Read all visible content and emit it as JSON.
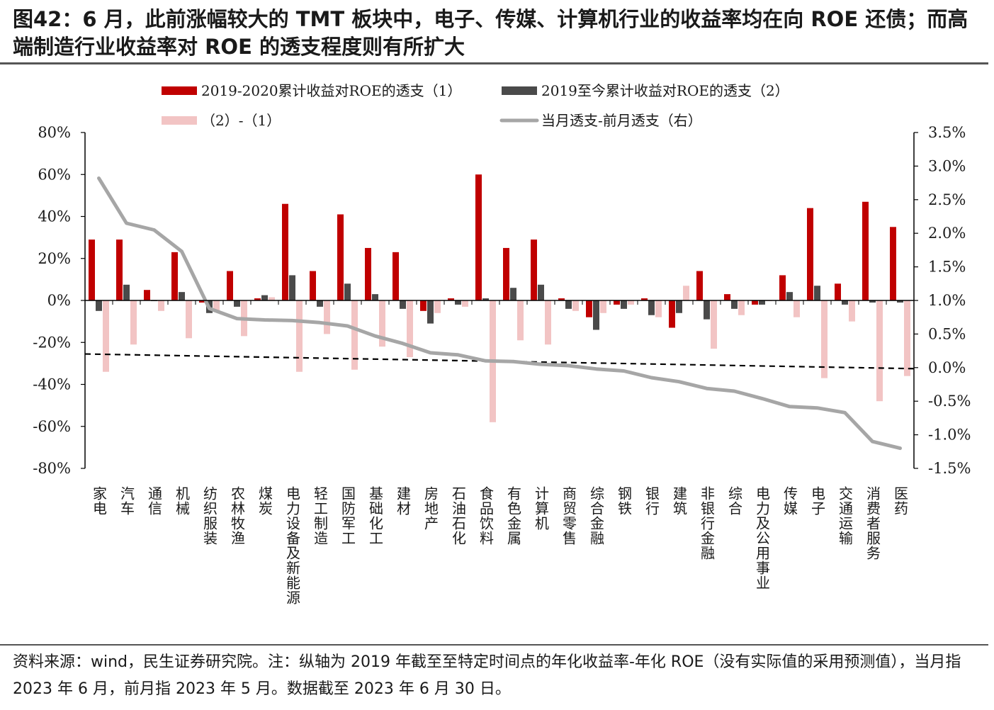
{
  "figure": {
    "title": "图42：6 月，此前涨幅较大的 TMT 板块中，电子、传媒、计算机行业的收益率均在向 ROE 还债；而高端制造行业收益率对 ROE 的透支程度则有所扩大",
    "note": "资料来源：wind，民生证券研究院。注：纵轴为 2019 年截至至特定时间点的年化收益率-年化 ROE（没有实际值的采用预测值），当月指 2023 年 6 月，前月指 2023 年 5 月。数据截至 2023 年 6 月 30 日。"
  },
  "chart_data": {
    "type": "bar",
    "categories": [
      "家电",
      "汽车",
      "通信",
      "机械",
      "纺织服装",
      "农林牧渔",
      "煤炭",
      "电力设备及新能源",
      "轻工制造",
      "国防军工",
      "基础化工",
      "建材",
      "房地产",
      "石油石化",
      "食品饮料",
      "有色金属",
      "计算机",
      "商贸零售",
      "综合金融",
      "钢铁",
      "银行",
      "建筑",
      "非银行金融",
      "综合",
      "电力及公用事业",
      "传媒",
      "电子",
      "交通运输",
      "消费者服务",
      "医药"
    ],
    "series": [
      {
        "name": "2019-2020累计收益对ROE的透支（1）",
        "axis": "left",
        "color": "#c00000",
        "values": [
          29,
          29,
          5,
          23,
          -1,
          14,
          1,
          46,
          14,
          41,
          25,
          23,
          -5,
          1,
          60,
          25,
          29,
          1,
          -8,
          -2,
          1,
          -13,
          14,
          3,
          -2,
          12,
          44,
          8,
          47,
          35
        ]
      },
      {
        "name": "2019至今累计收益对ROE的透支（2）",
        "axis": "left",
        "color": "#4a4a4a",
        "values": [
          -5,
          7.5,
          0,
          4,
          -6,
          -3,
          2.5,
          12,
          -3,
          8,
          3,
          -4,
          -11,
          -2,
          1,
          6,
          7.5,
          -4,
          -14,
          -4,
          -7,
          -6,
          -9,
          -4,
          -2,
          4,
          7,
          -2,
          -1,
          -1
        ]
      },
      {
        "name": "（2）-（1）",
        "axis": "left",
        "color": "#f2c4c4",
        "values": [
          -34,
          -21,
          -5,
          -18,
          -5,
          -17,
          1.5,
          -34,
          -16,
          -33,
          -22,
          -27,
          -6,
          -3,
          -58,
          -19,
          -21,
          -5,
          -6,
          -2,
          -8,
          7,
          -23,
          -7,
          0,
          -8,
          -37,
          -10,
          -48,
          -36
        ]
      },
      {
        "name": "当月透支-前月透支（右）",
        "axis": "right",
        "type": "line",
        "color": "#a6a6a6",
        "values": [
          2.82,
          2.15,
          2.05,
          1.73,
          0.88,
          0.73,
          0.71,
          0.7,
          0.67,
          0.62,
          0.47,
          0.36,
          0.22,
          0.19,
          0.1,
          0.09,
          0.05,
          0.03,
          -0.02,
          -0.05,
          -0.15,
          -0.21,
          -0.31,
          -0.35,
          -0.46,
          -0.58,
          -0.6,
          -0.67,
          -1.1,
          -1.2
        ]
      }
    ],
    "trendline": {
      "style": "dashed",
      "color": "#000000",
      "axis": "left",
      "start": -25.5,
      "end": -32.5
    },
    "y_left": {
      "ylim": [
        -80,
        80
      ],
      "ticks": [
        -80,
        -60,
        -40,
        -20,
        0,
        20,
        40,
        60,
        80
      ],
      "tick_labels": [
        "-80%",
        "-60%",
        "-40%",
        "-20%",
        "0%",
        "20%",
        "40%",
        "60%",
        "80%"
      ]
    },
    "y_right": {
      "ylim": [
        -1.5,
        3.5
      ],
      "ticks": [
        -1.5,
        -1.0,
        -0.5,
        0.0,
        0.5,
        1.0,
        1.5,
        2.0,
        2.5,
        3.0,
        3.5
      ],
      "tick_labels": [
        "-1.5%",
        "-1.0%",
        "-0.5%",
        "0.0%",
        "0.5%",
        "1.0%",
        "1.5%",
        "2.0%",
        "2.5%",
        "3.0%",
        "3.5%"
      ]
    },
    "legend": {
      "placement": "top",
      "entries": [
        "2019-2020累计收益对ROE的透支（1）",
        "2019至今累计收益对ROE的透支（2）",
        "（2）-（1）",
        "当月透支-前月透支（右）"
      ]
    },
    "grid": false
  }
}
